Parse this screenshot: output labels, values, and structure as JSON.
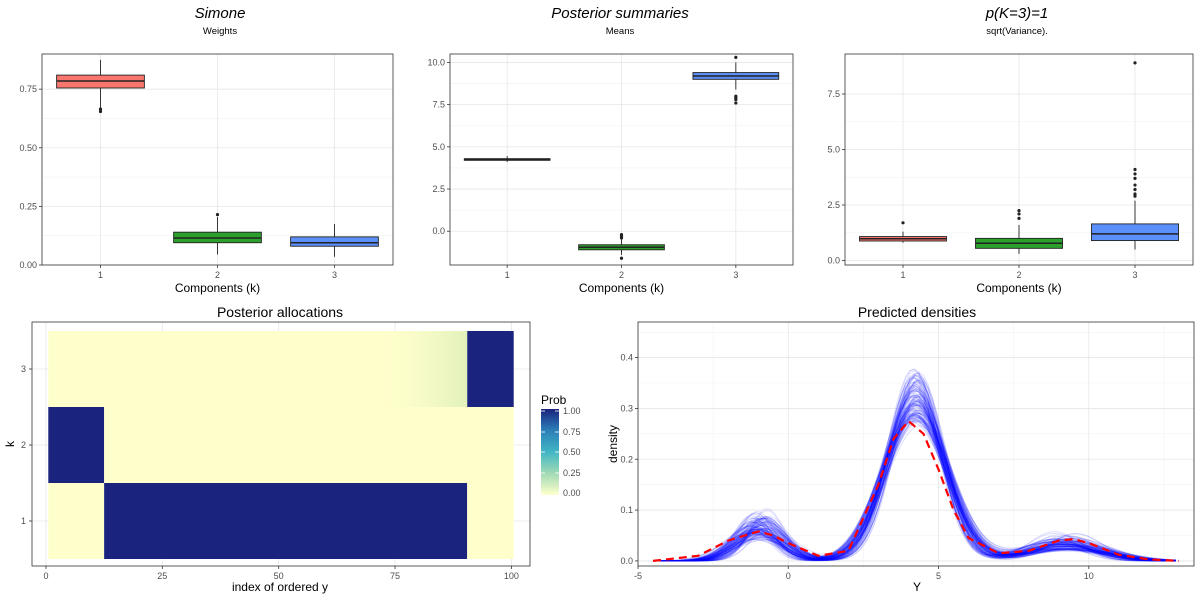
{
  "header": {
    "left_title": "Simone",
    "center_title": "Posterior summaries",
    "right_title": "p(K=3)=1"
  },
  "colors": {
    "comp1": "#F8766D",
    "comp2": "#2CA02C",
    "comp3": "#5B8FF9",
    "heat_low": "#FFFFCC",
    "heat_high": "#1A237E",
    "posterior_lines": "#0000FF",
    "mean_line": "#FF0000"
  },
  "chart_data": [
    {
      "type": "box",
      "subtitle": "Weights",
      "xlabel": "Components (k)",
      "categories": [
        "1",
        "2",
        "3"
      ],
      "ylim": [
        0,
        0.9
      ],
      "yticks": [
        0.0,
        0.25,
        0.5,
        0.75
      ],
      "ytick_labels": [
        "0.00",
        "0.25",
        "0.50",
        "0.75"
      ],
      "boxes": [
        {
          "q1": 0.755,
          "median": 0.785,
          "q3": 0.81,
          "whisker_low": 0.67,
          "whisker_high": 0.875,
          "outliers": [
            0.655,
            0.665
          ]
        },
        {
          "q1": 0.095,
          "median": 0.115,
          "q3": 0.14,
          "whisker_low": 0.045,
          "whisker_high": 0.205,
          "outliers": [
            0.215
          ]
        },
        {
          "q1": 0.08,
          "median": 0.095,
          "q3": 0.12,
          "whisker_low": 0.035,
          "whisker_high": 0.175,
          "outliers": []
        }
      ]
    },
    {
      "type": "box",
      "subtitle": "Means",
      "xlabel": "Components (k)",
      "categories": [
        "1",
        "2",
        "3"
      ],
      "ylim": [
        -2,
        10.5
      ],
      "yticks": [
        0.0,
        2.5,
        5.0,
        7.5,
        10.0
      ],
      "ytick_labels": [
        "0.0",
        "2.5",
        "5.0",
        "7.5",
        "10.0"
      ],
      "boxes": [
        {
          "q1": 4.2,
          "median": 4.25,
          "q3": 4.3,
          "whisker_low": 4.1,
          "whisker_high": 4.45,
          "outliers": []
        },
        {
          "q1": -1.1,
          "median": -0.95,
          "q3": -0.8,
          "whisker_low": -1.4,
          "whisker_high": -0.5,
          "outliers": [
            -0.2,
            -0.3,
            -0.4,
            -1.6
          ]
        },
        {
          "q1": 9.0,
          "median": 9.2,
          "q3": 9.4,
          "whisker_low": 8.4,
          "whisker_high": 10.0,
          "outliers": [
            7.6,
            7.8,
            7.9,
            8.0,
            10.3
          ]
        }
      ]
    },
    {
      "type": "box",
      "subtitle": "sqrt(Variance).",
      "xlabel": "Components (k)",
      "categories": [
        "1",
        "2",
        "3"
      ],
      "ylim": [
        -0.2,
        9.3
      ],
      "yticks": [
        0.0,
        2.5,
        5.0,
        7.5
      ],
      "ytick_labels": [
        "0.0",
        "2.5",
        "5.0",
        "7.5"
      ],
      "boxes": [
        {
          "q1": 0.88,
          "median": 0.98,
          "q3": 1.08,
          "whisker_low": 0.8,
          "whisker_high": 1.3,
          "outliers": [
            1.7
          ]
        },
        {
          "q1": 0.55,
          "median": 0.78,
          "q3": 1.0,
          "whisker_low": 0.3,
          "whisker_high": 1.6,
          "outliers": [
            1.9,
            2.1,
            2.25
          ]
        },
        {
          "q1": 0.9,
          "median": 1.2,
          "q3": 1.65,
          "whisker_low": 0.5,
          "whisker_high": 2.7,
          "outliers": [
            2.9,
            3.0,
            3.2,
            3.4,
            3.7,
            3.9,
            4.1,
            8.9
          ]
        }
      ]
    },
    {
      "type": "heatmap",
      "title": "Posterior allocations",
      "xlabel": "index of ordered y",
      "ylabel": "k",
      "x_range": [
        1,
        100
      ],
      "xticks": [
        0,
        25,
        50,
        75,
        100
      ],
      "yticks": [
        "1",
        "2",
        "3"
      ],
      "legend_title": "Prob",
      "legend_ticks": [
        "1.00",
        "0.75",
        "0.50",
        "0.25",
        "0.00"
      ],
      "segments": {
        "k1": [
          [
            1,
            12,
            0.0
          ],
          [
            13,
            90,
            1.0
          ],
          [
            91,
            100,
            0.0
          ]
        ],
        "k2": [
          [
            1,
            12,
            1.0
          ],
          [
            13,
            100,
            0.0
          ]
        ],
        "k3": [
          [
            1,
            90,
            0.0
          ],
          [
            91,
            100,
            1.0
          ]
        ]
      }
    },
    {
      "type": "line",
      "title": "Predicted densities",
      "xlabel": "Y",
      "ylabel": "density",
      "xlim": [
        -5,
        13.5
      ],
      "ylim": [
        -0.01,
        0.47
      ],
      "xticks": [
        -5,
        0,
        5,
        10
      ],
      "yticks": [
        0.0,
        0.1,
        0.2,
        0.3,
        0.4
      ],
      "ytick_labels": [
        "0.0",
        "0.1",
        "0.2",
        "0.3",
        "0.4"
      ],
      "mean_density": {
        "x": [
          -4.5,
          -3,
          -2,
          -1,
          -0.5,
          0,
          1,
          2,
          3,
          3.5,
          4,
          4.5,
          5,
          5.5,
          6,
          7,
          8,
          9,
          9.5,
          10,
          11,
          12,
          13
        ],
        "y": [
          0.0,
          0.01,
          0.04,
          0.058,
          0.05,
          0.035,
          0.01,
          0.02,
          0.15,
          0.24,
          0.275,
          0.25,
          0.18,
          0.1,
          0.045,
          0.015,
          0.02,
          0.04,
          0.043,
          0.035,
          0.012,
          0.003,
          0.0
        ]
      }
    }
  ]
}
